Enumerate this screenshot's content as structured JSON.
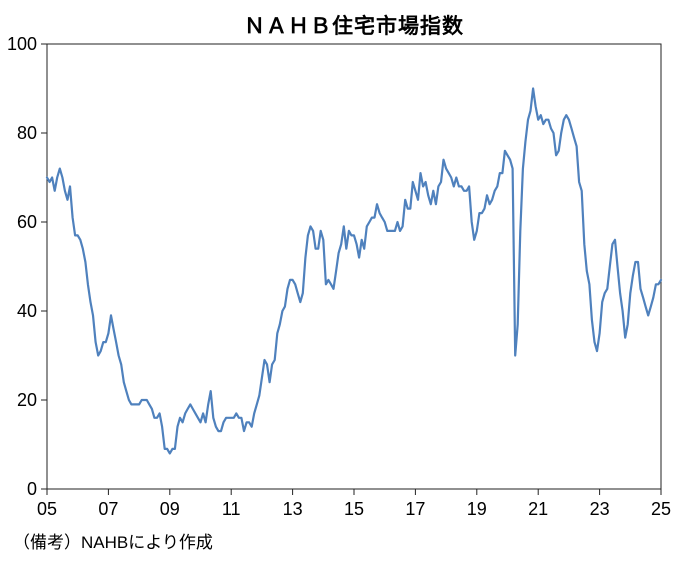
{
  "chart_data": {
    "type": "line",
    "title": "ＮＡＨＢ住宅市場指数",
    "xlabel": "",
    "ylabel": "",
    "ylim": [
      0,
      100
    ],
    "y_ticks": [
      0,
      20,
      40,
      60,
      80,
      100
    ],
    "x_tick_labels": [
      "05",
      "07",
      "09",
      "11",
      "13",
      "15",
      "17",
      "19",
      "21",
      "23",
      "25"
    ],
    "x_start": "2005-01",
    "x_end": "2025-01",
    "frequency": "monthly",
    "grid": false,
    "legend": "none",
    "plot_border_color": "#222222",
    "series": [
      {
        "name": "NAHB住宅市場指数",
        "color": "#4F81BD",
        "values": [
          70,
          69,
          70,
          67,
          70,
          72,
          70,
          67,
          65,
          68,
          61,
          57,
          57,
          56,
          54,
          51,
          46,
          42,
          39,
          33,
          30,
          31,
          33,
          33,
          35,
          39,
          36,
          33,
          30,
          28,
          24,
          22,
          20,
          19,
          19,
          19,
          19,
          20,
          20,
          20,
          19,
          18,
          16,
          16,
          17,
          14,
          9,
          9,
          8,
          9,
          9,
          14,
          16,
          15,
          17,
          18,
          19,
          18,
          17,
          16,
          15,
          17,
          15,
          19,
          22,
          16,
          14,
          13,
          13,
          15,
          16,
          16,
          16,
          16,
          17,
          16,
          16,
          13,
          15,
          15,
          14,
          17,
          19,
          21,
          25,
          29,
          28,
          24,
          28,
          29,
          35,
          37,
          40,
          41,
          45,
          47,
          47,
          46,
          44,
          42,
          44,
          52,
          57,
          59,
          58,
          54,
          54,
          58,
          56,
          46,
          47,
          46,
          45,
          49,
          53,
          55,
          59,
          54,
          58,
          57,
          57,
          55,
          52,
          56,
          54,
          59,
          60,
          61,
          61,
          64,
          62,
          61,
          60,
          58,
          58,
          58,
          58,
          60,
          58,
          59,
          65,
          63,
          63,
          69,
          67,
          65,
          71,
          68,
          69,
          66,
          64,
          67,
          64,
          68,
          69,
          74,
          72,
          71,
          70,
          68,
          70,
          68,
          68,
          67,
          67,
          68,
          60,
          56,
          58,
          62,
          62,
          63,
          66,
          64,
          65,
          67,
          68,
          71,
          71,
          76,
          75,
          74,
          72,
          30,
          37,
          58,
          72,
          78,
          83,
          85,
          90,
          86,
          83,
          84,
          82,
          83,
          83,
          81,
          80,
          75,
          76,
          80,
          83,
          84,
          83,
          81,
          79,
          77,
          69,
          67,
          55,
          49,
          46,
          38,
          33,
          31,
          35,
          42,
          44,
          45,
          50,
          55,
          56,
          50,
          44,
          40,
          34,
          37,
          44,
          48,
          51,
          51,
          45,
          43,
          41,
          39,
          41,
          43,
          46,
          46,
          47
        ]
      }
    ]
  },
  "footer": {
    "note": "（備考）NAHBにより作成"
  }
}
